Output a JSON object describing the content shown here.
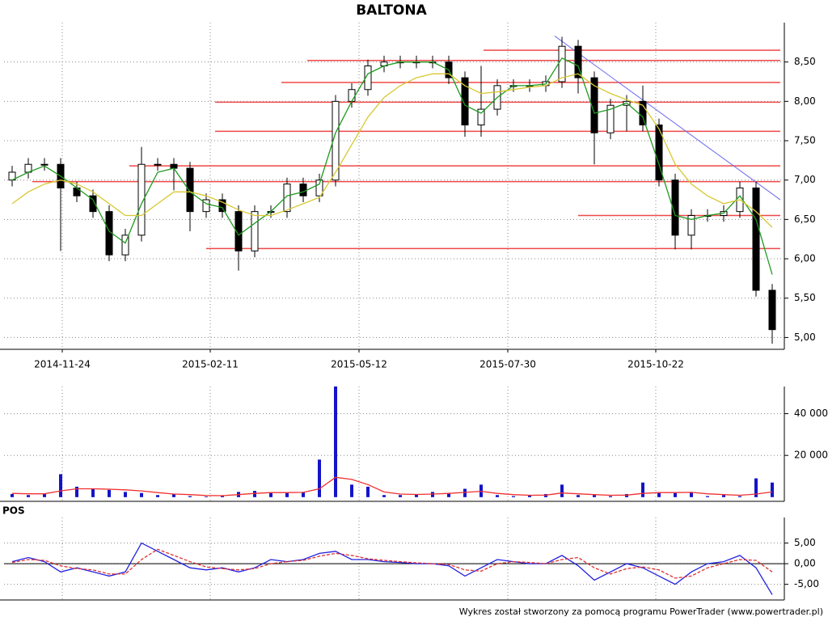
{
  "title": "BALTONA",
  "footer": "Wykres został stworzony za pomocą programu PowerTrader (www.powertrader.pl)",
  "chart_data": [
    {
      "type": "candlestick",
      "xlim": [
        0,
        48
      ],
      "xticks": [
        {
          "value": 3.6,
          "label": "2014-11-24"
        },
        {
          "value": 12.75,
          "label": "2015-02-11"
        },
        {
          "value": 21.95,
          "label": "2015-05-12"
        },
        {
          "value": 31.15,
          "label": "2015-07-30"
        },
        {
          "value": 40.3,
          "label": "2015-10-22"
        }
      ],
      "ylim": [
        4.85,
        9
      ],
      "yticks": [
        {
          "value": 5,
          "label": "5,00"
        },
        {
          "value": 5.5,
          "label": "5,50"
        },
        {
          "value": 6,
          "label": "6,00"
        },
        {
          "value": 6.5,
          "label": "6,50"
        },
        {
          "value": 7,
          "label": "7,00"
        },
        {
          "value": 7.5,
          "label": "7,50"
        },
        {
          "value": 8,
          "label": "8,00"
        },
        {
          "value": 8.5,
          "label": "8,50"
        }
      ],
      "grid": true,
      "up_color": "#ffffff",
      "down_color": "#000000",
      "open": [
        7.0,
        7.1,
        7.2,
        7.2,
        6.9,
        6.8,
        6.6,
        6.05,
        6.3,
        7.2,
        7.2,
        7.15,
        6.6,
        6.75,
        6.6,
        6.1,
        6.6,
        6.6,
        6.95,
        6.8,
        7.0,
        8.0,
        8.15,
        8.45,
        8.5,
        8.5,
        8.5,
        8.5,
        8.3,
        7.7,
        7.9,
        8.2,
        8.2,
        8.2,
        8.25,
        8.7,
        8.3,
        7.6,
        7.95,
        8.0,
        7.7,
        7.0,
        6.3,
        6.55,
        6.55,
        6.6,
        6.9,
        5.6
      ],
      "high": [
        7.18,
        7.28,
        7.28,
        7.28,
        6.98,
        6.88,
        6.68,
        6.38,
        7.42,
        7.28,
        7.28,
        7.23,
        6.83,
        6.83,
        6.68,
        6.68,
        6.68,
        7.03,
        7.03,
        7.08,
        8.08,
        8.23,
        8.53,
        8.58,
        8.58,
        8.58,
        8.58,
        8.58,
        8.38,
        8.45,
        8.28,
        8.28,
        8.28,
        8.33,
        8.82,
        8.78,
        8.38,
        8.03,
        8.08,
        8.2,
        7.78,
        7.08,
        6.63,
        6.63,
        6.68,
        6.98,
        6.98,
        5.68
      ],
      "low": [
        6.92,
        7.02,
        7.12,
        6.1,
        6.72,
        6.52,
        5.97,
        5.97,
        6.22,
        7.12,
        6.87,
        6.35,
        6.52,
        6.52,
        5.85,
        6.02,
        6.52,
        6.52,
        6.72,
        6.72,
        6.92,
        7.92,
        8.07,
        8.37,
        8.42,
        8.42,
        8.42,
        8.22,
        7.55,
        7.55,
        7.82,
        8.12,
        8.12,
        8.12,
        8.17,
        8.1,
        7.2,
        7.52,
        7.62,
        7.62,
        6.92,
        6.12,
        6.12,
        6.47,
        6.47,
        6.52,
        5.52,
        4.92
      ],
      "close": [
        7.1,
        7.2,
        7.2,
        6.9,
        6.8,
        6.6,
        6.05,
        6.3,
        7.2,
        7.2,
        7.15,
        6.6,
        6.75,
        6.6,
        6.1,
        6.6,
        6.6,
        6.95,
        6.8,
        7.0,
        8.0,
        8.15,
        8.45,
        8.5,
        8.5,
        8.5,
        8.5,
        8.3,
        7.7,
        7.9,
        8.2,
        8.2,
        8.2,
        8.25,
        8.7,
        8.3,
        7.6,
        7.95,
        8.0,
        7.7,
        7.0,
        6.3,
        6.55,
        6.55,
        6.6,
        6.9,
        5.6,
        5.1
      ],
      "moving_averages": [
        {
          "color": "#1e9a1e",
          "values": [
            7.0,
            7.1,
            7.18,
            7.05,
            6.9,
            6.75,
            6.35,
            6.2,
            6.7,
            7.1,
            7.15,
            6.85,
            6.7,
            6.65,
            6.3,
            6.45,
            6.6,
            6.8,
            6.85,
            6.95,
            7.6,
            8.0,
            8.35,
            8.45,
            8.5,
            8.5,
            8.5,
            8.4,
            7.95,
            7.85,
            8.05,
            8.2,
            8.2,
            8.22,
            8.55,
            8.45,
            7.85,
            7.9,
            7.98,
            7.8,
            7.2,
            6.55,
            6.5,
            6.55,
            6.58,
            6.8,
            6.5,
            5.8
          ]
        },
        {
          "color": "#d8c832",
          "values": [
            6.7,
            6.85,
            6.95,
            7.0,
            6.95,
            6.85,
            6.7,
            6.55,
            6.55,
            6.7,
            6.85,
            6.85,
            6.8,
            6.72,
            6.62,
            6.55,
            6.55,
            6.62,
            6.7,
            6.78,
            7.1,
            7.45,
            7.8,
            8.05,
            8.2,
            8.3,
            8.35,
            8.35,
            8.2,
            8.1,
            8.12,
            8.15,
            8.18,
            8.2,
            8.3,
            8.35,
            8.2,
            8.1,
            8.02,
            7.95,
            7.65,
            7.2,
            6.95,
            6.8,
            6.7,
            6.75,
            6.6,
            6.4
          ]
        }
      ],
      "levels_color": "#f04848",
      "levels": [
        {
          "value": 8.65,
          "start": 29.65
        },
        {
          "value": 8.52,
          "start": 18.75
        },
        {
          "value": 8.24,
          "start": 17.15
        },
        {
          "value": 7.99,
          "start": 13.05
        },
        {
          "value": 7.62,
          "start": 13.05
        },
        {
          "value": 7.18,
          "start": 7.75
        },
        {
          "value": 6.98,
          "start": 1.75
        },
        {
          "value": 6.55,
          "start": 35.5
        },
        {
          "value": 6.13,
          "start": 12.5
        }
      ],
      "trendline": {
        "color": "#6a6af0",
        "x": [
          34.05,
          48
        ],
        "y": [
          8.83,
          6.75
        ]
      }
    },
    {
      "type": "bar",
      "xlim": [
        0,
        48
      ],
      "ylim": [
        -2000,
        53000
      ],
      "yticks": [
        {
          "value": 20000,
          "label": "20 000"
        },
        {
          "value": 40000,
          "label": "40 000"
        }
      ],
      "grid": true,
      "color": "#1414c8",
      "values": [
        1500,
        1000,
        1500,
        11000,
        5000,
        4000,
        3500,
        2500,
        2000,
        1000,
        1500,
        500,
        300,
        800,
        2500,
        3000,
        2000,
        2000,
        2500,
        18000,
        53000,
        6000,
        5000,
        1000,
        1000,
        1500,
        2500,
        2000,
        4000,
        6000,
        1000,
        500,
        800,
        1500,
        6000,
        1000,
        1000,
        500,
        1500,
        7000,
        2000,
        2000,
        2500,
        500,
        1000,
        500,
        9000,
        7000
      ],
      "average": {
        "color": "#f03030",
        "values": [
          1800,
          1600,
          1600,
          3000,
          4000,
          4000,
          3800,
          3500,
          3000,
          2200,
          1500,
          1200,
          800,
          700,
          1200,
          1800,
          2200,
          2200,
          2300,
          4000,
          9500,
          8500,
          6000,
          2500,
          1500,
          1300,
          1500,
          1800,
          2300,
          2800,
          1800,
          1200,
          900,
          1000,
          2000,
          1600,
          1200,
          900,
          1000,
          1800,
          2200,
          2200,
          2300,
          1600,
          1200,
          900,
          1500,
          2500
        ]
      }
    },
    {
      "type": "line",
      "title": "POS",
      "xlim": [
        0,
        48
      ],
      "ylim": [
        -8.8,
        11.2
      ],
      "yticks": [
        {
          "value": -5,
          "label": "-5,00"
        },
        {
          "value": 0,
          "label": "0,00"
        },
        {
          "value": 5,
          "label": "5,00"
        }
      ],
      "grid": true,
      "series": [
        {
          "color": "#2020e0",
          "values": [
            0.5,
            1.5,
            0.5,
            -2,
            -1,
            -2,
            -3,
            -2,
            5,
            3,
            1,
            -1,
            -1.5,
            -1,
            -2,
            -1,
            1,
            0.5,
            1,
            2.5,
            3,
            1,
            1,
            0.5,
            0.3,
            0,
            0,
            -0.5,
            -3,
            -1,
            1,
            0.5,
            0,
            0,
            2,
            -0.5,
            -4,
            -2,
            0,
            -1,
            -3,
            -5,
            -2,
            0,
            0.5,
            2,
            -1,
            -7.5
          ]
        },
        {
          "color": "#e03030",
          "dashed": true,
          "values": [
            0.3,
            1,
            0.8,
            -0.5,
            -1.2,
            -1.5,
            -2.5,
            -2.5,
            1,
            3.5,
            2,
            0.5,
            -0.8,
            -1.2,
            -1.5,
            -1.2,
            0,
            0.5,
            0.8,
            1.8,
            2.5,
            2,
            1.2,
            0.8,
            0.5,
            0.2,
            0,
            -0.2,
            -1.5,
            -1.8,
            0,
            0.5,
            0.3,
            0,
            1,
            1.5,
            -1,
            -2.5,
            -1.2,
            -0.8,
            -1.5,
            -3.5,
            -3,
            -1,
            0,
            1,
            0.8,
            -2
          ]
        }
      ]
    }
  ]
}
